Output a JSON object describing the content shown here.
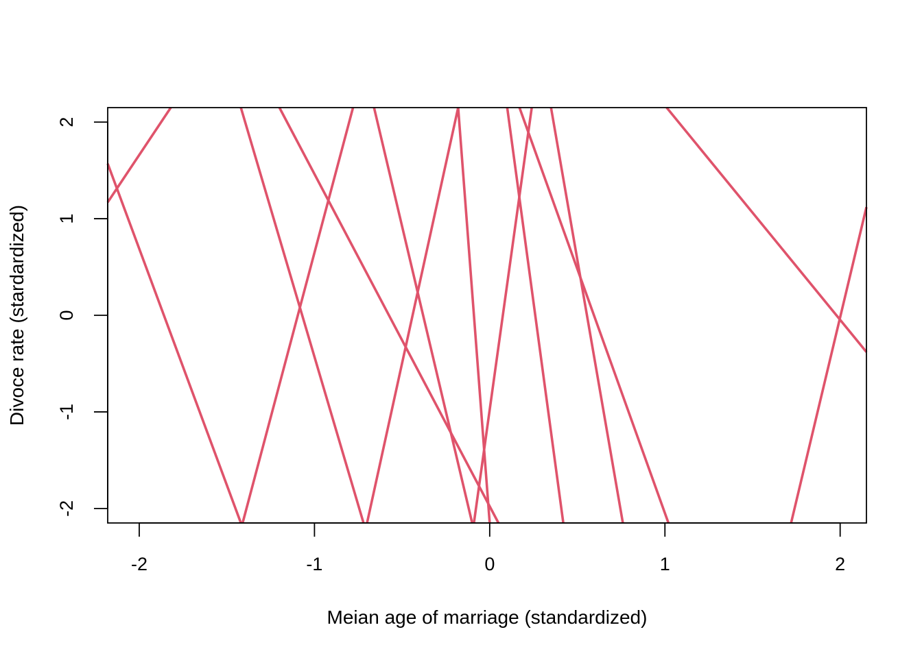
{
  "chart_data": {
    "type": "line",
    "title": "",
    "xlabel": "Meian age of marriage (standardized)",
    "ylabel": "Divoce rate (stardardized)",
    "xlim": [
      -2.18,
      2.15
    ],
    "ylim": [
      -2.15,
      2.15
    ],
    "x_ticks": [
      -2,
      -1,
      0,
      1,
      2
    ],
    "y_ticks": [
      -2,
      -1,
      0,
      1,
      2
    ],
    "x_tick_labels": [
      "-2",
      "-1",
      "0",
      "1",
      "2"
    ],
    "y_tick_labels": [
      "-2",
      "-1",
      "0",
      "1",
      "2"
    ],
    "grid": false,
    "line_color": "#DF536B",
    "series": [
      {
        "x": [
          -2.18,
          -1.82
        ],
        "y": [
          1.17,
          2.15
        ]
      },
      {
        "x": [
          -2.18,
          -1.42
        ],
        "y": [
          1.57,
          -2.15
        ]
      },
      {
        "x": [
          -1.42,
          -0.72
        ],
        "y": [
          2.15,
          -2.15
        ]
      },
      {
        "x": [
          -1.2,
          0.05
        ],
        "y": [
          2.15,
          -2.15
        ]
      },
      {
        "x": [
          -1.41,
          -0.78
        ],
        "y": [
          -2.15,
          2.15
        ]
      },
      {
        "x": [
          -0.66,
          -0.1
        ],
        "y": [
          2.15,
          -2.15
        ]
      },
      {
        "x": [
          -0.7,
          -0.18
        ],
        "y": [
          -2.15,
          2.15
        ]
      },
      {
        "x": [
          -0.18,
          0.0
        ],
        "y": [
          2.15,
          -2.15
        ]
      },
      {
        "x": [
          -0.09,
          0.24
        ],
        "y": [
          -2.15,
          2.15
        ]
      },
      {
        "x": [
          0.1,
          0.42
        ],
        "y": [
          2.15,
          -2.15
        ]
      },
      {
        "x": [
          0.17,
          1.02
        ],
        "y": [
          2.15,
          -2.15
        ]
      },
      {
        "x": [
          0.35,
          0.76
        ],
        "y": [
          2.15,
          -2.15
        ]
      },
      {
        "x": [
          1.01,
          2.15
        ],
        "y": [
          2.15,
          -0.38
        ]
      },
      {
        "x": [
          1.72,
          2.15
        ],
        "y": [
          -2.15,
          1.12
        ]
      }
    ]
  }
}
